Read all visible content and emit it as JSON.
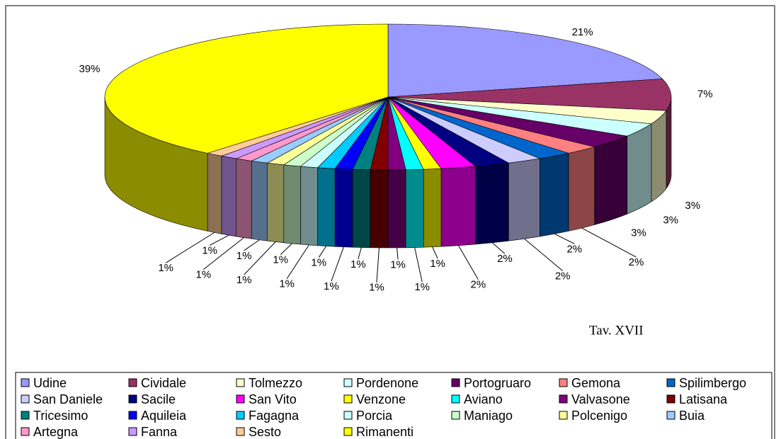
{
  "chart_data": {
    "type": "pie3d",
    "categories": [
      "Udine",
      "Cividale",
      "Tolmezzo",
      "Pordenone",
      "Portogruaro",
      "Gemona",
      "Spilimbergo",
      "San Daniele",
      "Sacile",
      "San Vito",
      "Venzone",
      "Aviano",
      "Valvasone",
      "Latisana",
      "Tricesimo",
      "Aquileia",
      "Fagagna",
      "Porcia",
      "Maniago",
      "Polcenigo",
      "Buia",
      "Artegna",
      "Fanna",
      "Sesto",
      "Rimanenti"
    ],
    "values": [
      21,
      7,
      3,
      3,
      3,
      2,
      2,
      2,
      2,
      2,
      1,
      1,
      1,
      1,
      1,
      1,
      1,
      1,
      1,
      1,
      1,
      1,
      1,
      1,
      39
    ],
    "value_labels": [
      "21%",
      "7%",
      "3%",
      "3%",
      "3%",
      "2%",
      "2%",
      "2%",
      "2%",
      "2%",
      "1%",
      "1%",
      "1%",
      "1%",
      "1%",
      "1%",
      "1%",
      "1%",
      "1%",
      "1%",
      "1%",
      "1%",
      "1%",
      "1%",
      "39%"
    ],
    "colors": [
      "#9999FF",
      "#993366",
      "#FFFFCC",
      "#CCFFFF",
      "#660066",
      "#FF8080",
      "#0066CC",
      "#CCCCFF",
      "#000080",
      "#FF00FF",
      "#FFFF00",
      "#00FFFF",
      "#800080",
      "#800000",
      "#008080",
      "#0000FF",
      "#00CCFF",
      "#CCFFFF",
      "#CCFFCC",
      "#FFFF99",
      "#99CCFF",
      "#FF99CC",
      "#CC99FF",
      "#FFCC99",
      "#FFFF00"
    ],
    "annotation": "Tav. XVII",
    "legend": "bottom"
  }
}
